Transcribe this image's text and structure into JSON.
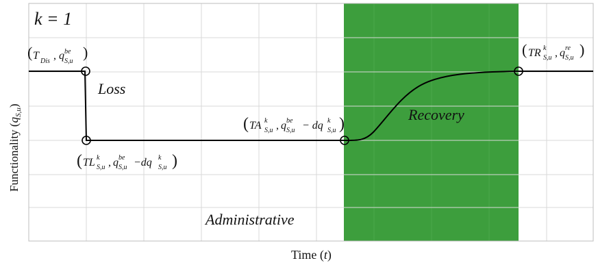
{
  "case_label": "k = 1",
  "axes": {
    "xlabel": "Time (t)",
    "ylabel": "Functionality (q_S,u)"
  },
  "phase_labels": {
    "loss": "Loss",
    "administrative": "Administrative",
    "recovery": "Recovery"
  },
  "points": {
    "disruption": {
      "base": "T",
      "base_sub": "Dis",
      "q": "q",
      "q_sup": "be",
      "q_sub": "S,u"
    },
    "loss": {
      "base": "TL",
      "base_sup": "k",
      "base_sub": "S,u",
      "q": "q",
      "q_sup": "be",
      "q_sub": "S,u",
      "minus": "−dq",
      "minus_sup": "k",
      "minus_sub": "S,u"
    },
    "admin_end": {
      "base": "TA",
      "base_sup": "k",
      "base_sub": "S,u",
      "q": "q",
      "q_sup": "be",
      "q_sub": "S,u",
      "minus": " − dq",
      "minus_sup": "k",
      "minus_sub": "S,u"
    },
    "recovered": {
      "base": "TR",
      "base_sup": "k",
      "base_sub": "S,u",
      "q": "q",
      "q_sup": "re",
      "q_sub": "S,u"
    }
  },
  "colors": {
    "recovery_band": "#3d9e3d",
    "curve": "#000000",
    "grid": "#d9d9d9"
  }
}
